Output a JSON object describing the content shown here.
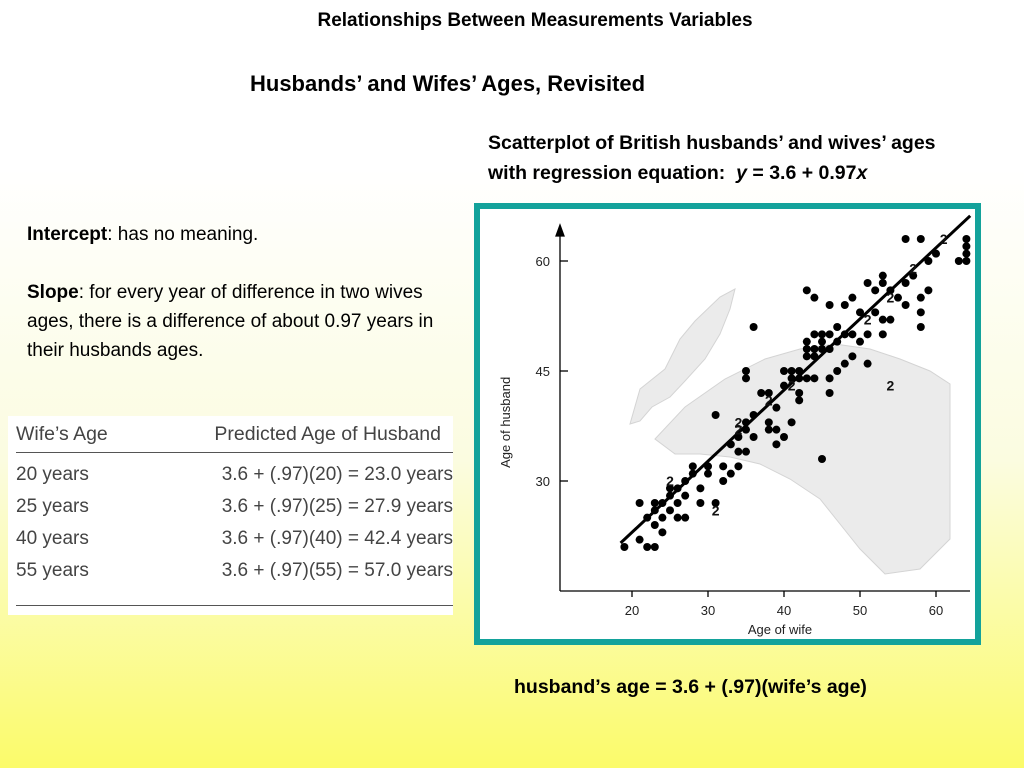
{
  "slide": {
    "title": "Relationships Between Measurements Variables",
    "subtitle": "Husbands’ and Wifes’ Ages, Revisited",
    "caption_line1": "Scatterplot of British husbands’ and wives’ ages",
    "caption_line2_prefix": "with regression equation:  ",
    "caption_eq_y": "y",
    "caption_eq_mid": " = 3.6 + 0.97",
    "caption_eq_x": "x",
    "intercept_label": "Intercept",
    "intercept_text": ": has no meaning.",
    "slope_label": "Slope",
    "slope_text": ": for every year of difference in two wives ages, there is a difference of about 0.97 years in their husbands ages.",
    "formula": "husband’s age = 3.6 + (.97)(wife’s age)"
  },
  "prediction_table": {
    "headers": [
      "Wife’s Age",
      "Predicted Age of Husband"
    ],
    "rows": [
      [
        "20 years",
        "3.6 + (.97)(20) = 23.0 years"
      ],
      [
        "25 years",
        "3.6 + (.97)(25) = 27.9 years"
      ],
      [
        "40 years",
        "3.6 + (.97)(40) = 42.4 years"
      ],
      [
        "55 years",
        "3.6 + (.97)(55) = 57.0 years"
      ]
    ]
  },
  "colors": {
    "chart_border": "#13a29b",
    "background_bottom": "#fbfb6a"
  },
  "chart_data": {
    "type": "scatter",
    "title": "",
    "xlabel": "Age of wife",
    "ylabel": "Age of husband",
    "xlim": [
      15,
      65
    ],
    "ylim": [
      15,
      62
    ],
    "xticks": [
      20,
      30,
      40,
      50,
      60
    ],
    "yticks": [
      30,
      45,
      60
    ],
    "grid": false,
    "regression_line": {
      "intercept": 3.6,
      "slope": 0.97,
      "x_range": [
        18.5,
        64.5
      ]
    },
    "series": [
      {
        "points": [
          [
            19,
            21
          ],
          [
            21,
            22
          ],
          [
            22,
            21
          ],
          [
            23,
            21
          ],
          [
            21,
            27
          ],
          [
            22,
            25
          ],
          [
            23,
            26
          ],
          [
            23,
            24
          ],
          [
            23,
            27
          ],
          [
            24,
            23
          ],
          [
            24,
            25
          ],
          [
            24,
            27
          ],
          [
            25,
            26
          ],
          [
            25,
            28
          ],
          [
            25,
            29
          ],
          [
            26,
            25
          ],
          [
            26,
            27
          ],
          [
            26,
            29
          ],
          [
            27,
            25
          ],
          [
            27,
            28
          ],
          [
            27,
            30
          ],
          [
            28,
            31
          ],
          [
            28,
            32
          ],
          [
            29,
            27
          ],
          [
            29,
            29
          ],
          [
            30,
            31
          ],
          [
            30,
            32
          ],
          [
            31,
            27
          ],
          [
            31,
            39
          ],
          [
            32,
            30
          ],
          [
            32,
            32
          ],
          [
            33,
            31
          ],
          [
            33,
            35
          ],
          [
            34,
            34
          ],
          [
            34,
            32
          ],
          [
            34,
            36
          ],
          [
            35,
            34
          ],
          [
            35,
            37
          ],
          [
            35,
            38
          ],
          [
            35,
            44
          ],
          [
            35,
            45
          ],
          [
            36,
            36
          ],
          [
            36,
            39
          ],
          [
            36,
            51
          ],
          [
            37,
            42
          ],
          [
            38,
            42
          ],
          [
            38,
            37
          ],
          [
            38,
            38
          ],
          [
            39,
            35
          ],
          [
            39,
            37
          ],
          [
            39,
            40
          ],
          [
            40,
            36
          ],
          [
            40,
            43
          ],
          [
            40,
            45
          ],
          [
            41,
            38
          ],
          [
            41,
            44
          ],
          [
            41,
            45
          ],
          [
            42,
            41
          ],
          [
            42,
            42
          ],
          [
            42,
            44
          ],
          [
            42,
            45
          ],
          [
            43,
            44
          ],
          [
            43,
            47
          ],
          [
            43,
            48
          ],
          [
            43,
            49
          ],
          [
            43,
            56
          ],
          [
            44,
            44
          ],
          [
            44,
            47
          ],
          [
            44,
            48
          ],
          [
            44,
            50
          ],
          [
            44,
            55
          ],
          [
            45,
            48
          ],
          [
            45,
            49
          ],
          [
            45,
            50
          ],
          [
            45,
            33
          ],
          [
            46,
            42
          ],
          [
            46,
            44
          ],
          [
            46,
            48
          ],
          [
            46,
            50
          ],
          [
            46,
            54
          ],
          [
            47,
            45
          ],
          [
            47,
            49
          ],
          [
            47,
            51
          ],
          [
            48,
            46
          ],
          [
            48,
            50
          ],
          [
            48,
            54
          ],
          [
            49,
            47
          ],
          [
            49,
            50
          ],
          [
            49,
            55
          ],
          [
            50,
            49
          ],
          [
            50,
            53
          ],
          [
            51,
            46
          ],
          [
            51,
            50
          ],
          [
            51,
            57
          ],
          [
            52,
            53
          ],
          [
            52,
            56
          ],
          [
            53,
            50
          ],
          [
            53,
            52
          ],
          [
            53,
            57
          ],
          [
            53,
            58
          ],
          [
            54,
            52
          ],
          [
            54,
            56
          ],
          [
            55,
            55
          ],
          [
            56,
            54
          ],
          [
            56,
            57
          ],
          [
            56,
            63
          ],
          [
            57,
            58
          ],
          [
            58,
            51
          ],
          [
            58,
            53
          ],
          [
            58,
            55
          ],
          [
            58,
            63
          ],
          [
            59,
            56
          ],
          [
            59,
            60
          ],
          [
            60,
            61
          ],
          [
            63,
            60
          ],
          [
            64,
            61
          ],
          [
            64,
            62
          ],
          [
            64,
            63
          ],
          [
            64,
            60
          ]
        ],
        "repeated_points_label": "2",
        "repeated_points": [
          [
            25,
            30
          ],
          [
            34,
            37
          ],
          [
            34,
            38
          ],
          [
            38,
            41
          ],
          [
            31,
            26
          ],
          [
            41,
            43
          ],
          [
            51,
            52
          ],
          [
            57,
            59
          ],
          [
            61,
            63
          ],
          [
            54,
            55
          ],
          [
            54,
            43
          ]
        ]
      }
    ]
  }
}
